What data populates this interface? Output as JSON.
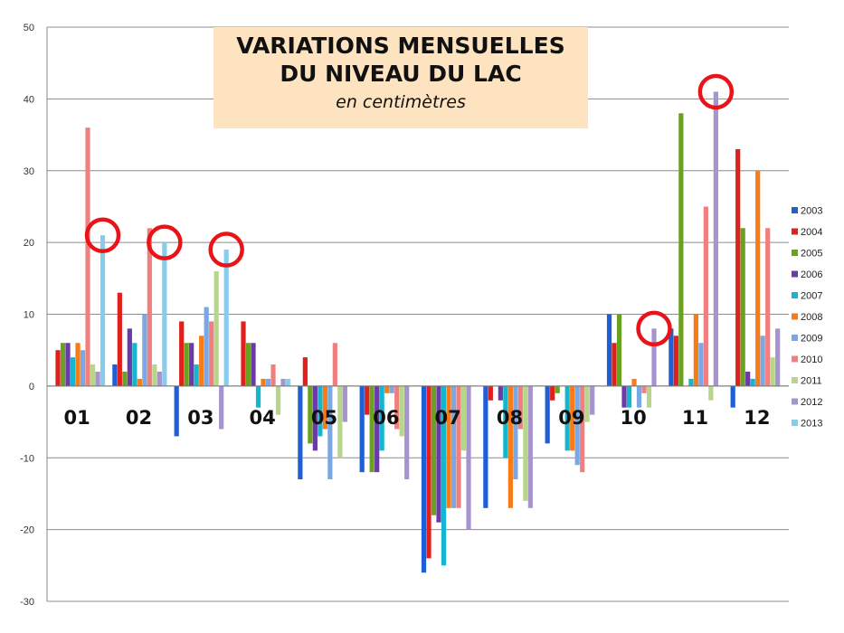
{
  "chart_data": {
    "type": "bar",
    "title_line1": "VARIATIONS MENSUELLES",
    "title_line2": "DU NIVEAU DU LAC",
    "subtitle": "en centimètres",
    "categories": [
      "01",
      "02",
      "03",
      "04",
      "05",
      "06",
      "07",
      "08",
      "09",
      "10",
      "11",
      "12"
    ],
    "ylim": [
      -30,
      50
    ],
    "yticks": [
      50,
      40,
      30,
      20,
      10,
      0,
      -10,
      -20,
      -30
    ],
    "grid": true,
    "legend_position": "right",
    "series": [
      {
        "name": "2003",
        "color": "#1f5fd6",
        "values": [
          0,
          3,
          -7,
          0,
          -13,
          -12,
          -26,
          -17,
          -8,
          10,
          8,
          -3
        ]
      },
      {
        "name": "2004",
        "color": "#e0201c",
        "values": [
          5,
          13,
          9,
          9,
          4,
          -4,
          -24,
          -2,
          -2,
          6,
          7,
          33
        ]
      },
      {
        "name": "2005",
        "color": "#6aa121",
        "values": [
          6,
          2,
          6,
          6,
          -8,
          -12,
          -18,
          0,
          -1,
          10,
          38,
          22
        ]
      },
      {
        "name": "2006",
        "color": "#6a3aa8",
        "values": [
          6,
          8,
          6,
          6,
          -9,
          -12,
          -19,
          -2,
          0,
          -3,
          0,
          2
        ]
      },
      {
        "name": "2007",
        "color": "#14b5cf",
        "values": [
          4,
          6,
          3,
          -3,
          -7,
          -9,
          -25,
          -10,
          -9,
          -3,
          1,
          1
        ]
      },
      {
        "name": "2008",
        "color": "#f77b16",
        "values": [
          6,
          1,
          7,
          1,
          -6,
          -1,
          -17,
          -17,
          -9,
          1,
          10,
          30
        ]
      },
      {
        "name": "2009",
        "color": "#7ba7e3",
        "values": [
          5,
          10,
          11,
          1,
          -13,
          -1,
          -17,
          -13,
          -11,
          -3,
          6,
          7
        ]
      },
      {
        "name": "2010",
        "color": "#f08080",
        "values": [
          36,
          22,
          9,
          3,
          6,
          -6,
          -17,
          -6,
          -12,
          -1,
          25,
          22
        ]
      },
      {
        "name": "2011",
        "color": "#b8d68a",
        "values": [
          3,
          3,
          16,
          -4,
          -10,
          -7,
          -9,
          -16,
          -5,
          -3,
          -2,
          4
        ]
      },
      {
        "name": "2012",
        "color": "#a694cf",
        "values": [
          2,
          2,
          -6,
          1,
          -5,
          -13,
          -20,
          -17,
          -4,
          8,
          41,
          8
        ]
      },
      {
        "name": "2013",
        "color": "#87cceb",
        "values": [
          21,
          20,
          19,
          1,
          0,
          0,
          0,
          0,
          0,
          0,
          0,
          0
        ]
      }
    ],
    "annotations": [
      {
        "type": "circle",
        "category": "01",
        "series": "2013",
        "value": 21
      },
      {
        "type": "circle",
        "category": "02",
        "series": "2013",
        "value": 20
      },
      {
        "type": "circle",
        "category": "03",
        "series": "2013",
        "value": 19
      },
      {
        "type": "circle",
        "category": "10",
        "series": "2012",
        "value": 8
      },
      {
        "type": "circle",
        "category": "11",
        "series": "2012",
        "value": 41
      }
    ],
    "annotation_color": "#e8141a",
    "title_box_color": "#fde3c0"
  }
}
